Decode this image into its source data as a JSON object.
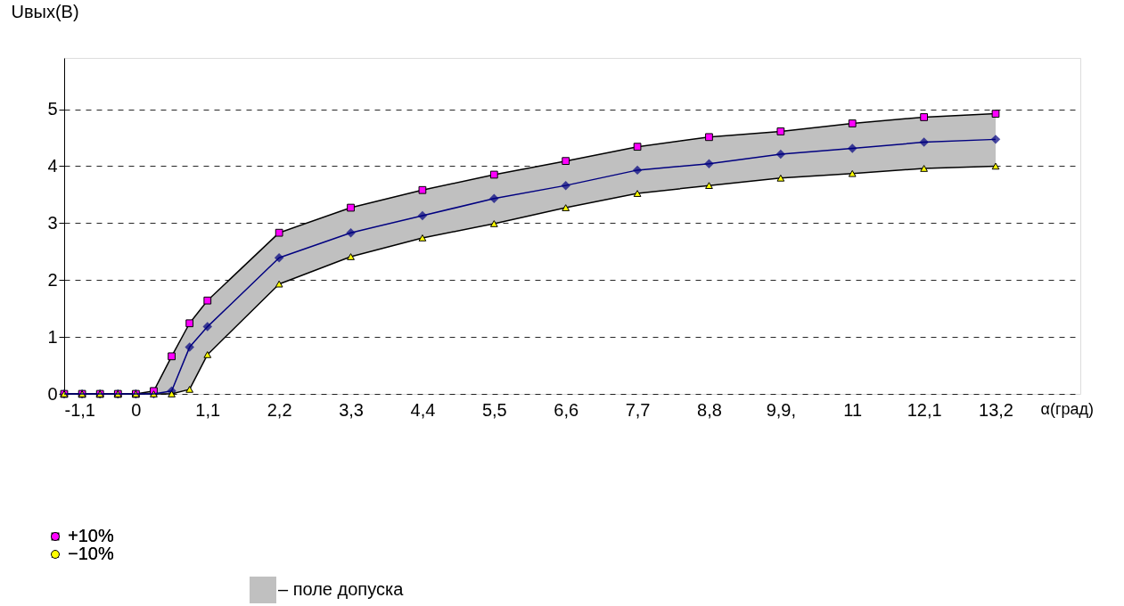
{
  "chart_data": {
    "type": "line",
    "xlabel": "α(град)",
    "ylabel": "Uвых(В)",
    "x": [
      -1.1,
      -0.825,
      -0.55,
      -0.275,
      0,
      0.275,
      0.55,
      0.825,
      1.1,
      2.2,
      3.3,
      4.4,
      5.5,
      6.6,
      7.7,
      8.8,
      9.9,
      11,
      12.1,
      13.2
    ],
    "series": [
      {
        "color": "#000080",
        "marker": "diamond",
        "values": [
          0,
          0,
          0,
          0,
          0,
          0,
          0.05,
          0.82,
          1.18,
          2.39,
          2.83,
          3.13,
          3.43,
          3.66,
          3.93,
          4.04,
          4.21,
          4.31,
          4.42,
          4.47
        ],
        "upper": [
          0,
          0,
          0,
          0,
          0,
          0.05,
          0.66,
          1.24,
          1.64,
          2.83,
          3.27,
          3.58,
          3.85,
          4.09,
          4.34,
          4.51,
          4.61,
          4.75,
          4.86,
          4.92
        ],
        "lower": [
          0,
          0,
          0,
          0,
          0,
          0,
          0,
          0.08,
          0.69,
          1.93,
          2.41,
          2.74,
          2.99,
          3.27,
          3.52,
          3.66,
          3.79,
          3.87,
          3.96,
          4.0
        ]
      },
      {
        "name": "+10%",
        "color": "#ff00ff",
        "marker": "square",
        "values": [
          0,
          0,
          0,
          0,
          0,
          0.05,
          0.66,
          1.24,
          1.64,
          2.83,
          3.27,
          3.58,
          3.85,
          4.09,
          4.34,
          4.51,
          4.61,
          4.75,
          4.86,
          4.92
        ]
      },
      {
        "name": "−10%",
        "color": "#ffff00",
        "marker": "triangle",
        "values": [
          0,
          0,
          0,
          0,
          0,
          0,
          0,
          0.08,
          0.69,
          1.93,
          2.41,
          2.74,
          2.99,
          3.27,
          3.52,
          3.66,
          3.79,
          3.87,
          3.96,
          4.0
        ]
      }
    ],
    "xlim": [
      -1.1,
      14.5
    ],
    "ylim": [
      0,
      5.9
    ],
    "xticks": [
      {
        "value": -1.1,
        "label": "-1,1"
      },
      0,
      {
        "value": 1.1,
        "label": "1,1"
      },
      {
        "value": 2.2,
        "label": "2,2"
      },
      {
        "value": 3.3,
        "label": "3,3"
      },
      {
        "value": 4.4,
        "label": "4,4"
      },
      {
        "value": 5.5,
        "label": "5,5"
      },
      {
        "value": 6.6,
        "label": "6,6"
      },
      {
        "value": 7.7,
        "label": "7,7"
      },
      {
        "value": 8.8,
        "label": "8,8"
      },
      {
        "value": 9.9,
        "label": "9,9,"
      },
      {
        "value": 11,
        "label": "11"
      },
      {
        "value": 12.1,
        "label": "12,1"
      },
      {
        "value": 13.2,
        "label": "13,2"
      }
    ],
    "yticks": [
      0,
      1,
      2,
      3,
      4,
      5
    ],
    "grid": "y",
    "line_style": "solid",
    "legend": "bottom left",
    "annotations": [
      "– поле допуска"
    ]
  }
}
